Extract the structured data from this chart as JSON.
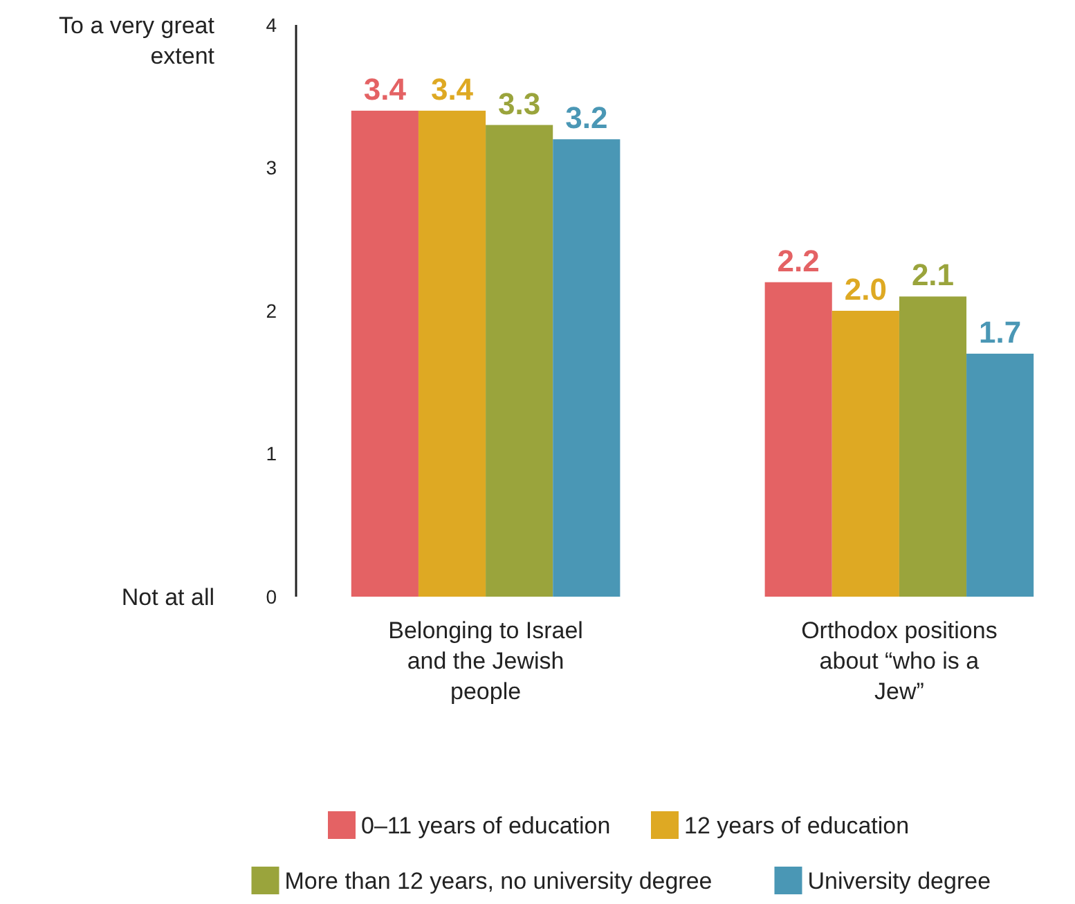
{
  "chart_data": {
    "type": "bar",
    "categories": [
      "Belonging to Israel and the Jewish people",
      "Orthodox positions about “who is a Jew”"
    ],
    "series": [
      {
        "name": "0–11 years of education",
        "color": "#e46264",
        "values": [
          3.4,
          2.2
        ],
        "value_labels": [
          "3.4",
          "2.2"
        ]
      },
      {
        "name": "12 years of education",
        "color": "#dea923",
        "values": [
          3.4,
          2.0
        ],
        "value_labels": [
          "3.4",
          "2.0"
        ]
      },
      {
        "name": "More than 12 years, no university degree",
        "color": "#9aa43c",
        "values": [
          3.3,
          2.1
        ],
        "value_labels": [
          "3.3",
          "2.1"
        ]
      },
      {
        "name": "University degree",
        "color": "#4a97b5",
        "values": [
          3.2,
          1.7
        ],
        "value_labels": [
          "3.2",
          "1.7"
        ]
      }
    ],
    "ylim": [
      0,
      4
    ],
    "yticks": [
      0,
      1,
      2,
      3,
      4
    ],
    "annotations": [
      "To a very great extent",
      "Not at all"
    ],
    "legend": "bottom"
  }
}
